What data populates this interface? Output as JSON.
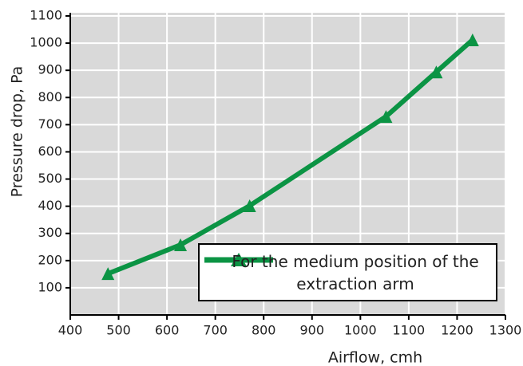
{
  "chart_data": {
    "type": "line",
    "x_label": "Airflow, cmh",
    "y_label": "Pressure drop, Pa",
    "xlim": [
      400,
      1300
    ],
    "xticks": [
      400,
      500,
      600,
      700,
      800,
      900,
      1000,
      1100,
      1200,
      1300
    ],
    "ylim": [
      0,
      1100
    ],
    "yticks": [
      100,
      200,
      300,
      400,
      500,
      600,
      700,
      800,
      900,
      1000,
      1100
    ],
    "grid": true,
    "series": [
      {
        "name": "For the medium position of the extraction arm",
        "color": "#0b9444",
        "x": [
          478,
          628,
          771,
          1053,
          1157,
          1232
        ],
        "values": [
          152,
          258,
          402,
          730,
          894,
          1012
        ]
      }
    ]
  }
}
